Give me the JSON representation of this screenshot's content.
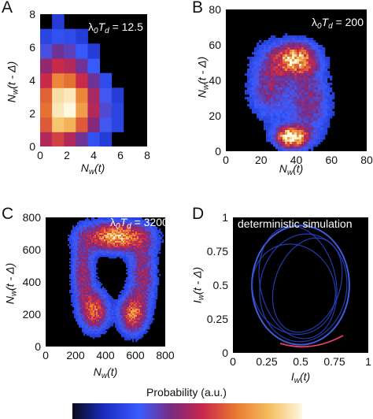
{
  "colormap": [
    "#0a0a1a",
    "#1a2cc0",
    "#3a5cff",
    "#7a2a80",
    "#c8284a",
    "#e87830",
    "#f5c060",
    "#fff8e0"
  ],
  "panels": {
    "A": {
      "letter": "A",
      "annotation": {
        "pre": "λ",
        "sub0": "0",
        "T": "T",
        "subd": "d",
        "post": " = 12.5"
      },
      "xticks": [
        "0",
        "2",
        "4",
        "6",
        "8"
      ],
      "yticks": [
        "0",
        "2",
        "4",
        "6",
        "8"
      ],
      "xlabel": {
        "main": "N",
        "sub": "w",
        "tail": "(t)"
      },
      "ylabel": {
        "main": "N",
        "sub": "w",
        "tail": "(t - Δ)"
      }
    },
    "B": {
      "letter": "B",
      "annotation": {
        "pre": "λ",
        "sub0": "0",
        "T": "T",
        "subd": "d",
        "post": " = 200"
      },
      "xticks": [
        "0",
        "20",
        "40",
        "60",
        "80"
      ],
      "yticks": [
        "0",
        "20",
        "40",
        "60",
        "80"
      ],
      "xlabel": {
        "main": "N",
        "sub": "w",
        "tail": "(t)"
      },
      "ylabel": {
        "main": "N",
        "sub": "w",
        "tail": "(t - Δ)"
      }
    },
    "C": {
      "letter": "C",
      "annotation": {
        "pre": "λ",
        "sub0": "0",
        "T": "T",
        "subd": "d",
        "post": " = 3200"
      },
      "xticks": [
        "0",
        "200",
        "400",
        "600",
        "800"
      ],
      "yticks": [
        "0",
        "200",
        "400",
        "600",
        "800"
      ],
      "xlabel": {
        "main": "N",
        "sub": "w",
        "tail": "(t)"
      },
      "ylabel": {
        "main": "N",
        "sub": "w",
        "tail": "(t - Δ)"
      }
    },
    "D": {
      "letter": "D",
      "annotation_text": "deterministic simulation",
      "xticks": [
        "0",
        "0.25",
        "0.5",
        "0.75",
        "1"
      ],
      "yticks": [
        "0",
        "0.25",
        "0.5",
        "0.75",
        "1"
      ],
      "xlabel": {
        "main": "I",
        "sub": "w",
        "tail": "(t)"
      },
      "ylabel": {
        "main": "I",
        "sub": "w",
        "tail": "(t - Δ)"
      }
    }
  },
  "colorbar_label": "Probability (a.u.)",
  "chart_data": [
    {
      "type": "heatmap",
      "panel": "A",
      "x_range": [
        0,
        8
      ],
      "y_range": [
        0,
        8
      ],
      "bins": 9,
      "values": [
        [
          0.45,
          0.55,
          0.45,
          0.3,
          0.12,
          0.05,
          0.0,
          0.0,
          0.0
        ],
        [
          0.6,
          0.85,
          0.8,
          0.6,
          0.35,
          0.18,
          0.08,
          0.0,
          0.0
        ],
        [
          0.65,
          0.95,
          1.0,
          0.75,
          0.45,
          0.22,
          0.08,
          0.0,
          0.0
        ],
        [
          0.62,
          0.92,
          0.95,
          0.7,
          0.42,
          0.18,
          0.05,
          0.0,
          0.0
        ],
        [
          0.5,
          0.7,
          0.65,
          0.5,
          0.3,
          0.1,
          0.0,
          0.0,
          0.0
        ],
        [
          0.38,
          0.5,
          0.45,
          0.3,
          0.15,
          0.0,
          0.0,
          0.0,
          0.0
        ],
        [
          0.2,
          0.3,
          0.25,
          0.15,
          0.05,
          0.0,
          0.0,
          0.0,
          0.0
        ],
        [
          0.08,
          0.12,
          0.1,
          0.05,
          0.0,
          0.0,
          0.0,
          0.0,
          0.0
        ],
        [
          0.0,
          0.05,
          0.0,
          0.0,
          0.0,
          0.0,
          0.0,
          0.0,
          0.0
        ]
      ]
    },
    {
      "type": "heatmap",
      "panel": "B",
      "x_range": [
        0,
        80
      ],
      "y_range": [
        0,
        80
      ],
      "blobs": [
        {
          "x": 38,
          "y": 8,
          "sx": 6,
          "sy": 4,
          "w": 1.0
        },
        {
          "x": 40,
          "y": 52,
          "sx": 8,
          "sy": 6,
          "w": 0.8
        },
        {
          "x": 25,
          "y": 38,
          "sx": 8,
          "sy": 14,
          "w": 0.35
        },
        {
          "x": 48,
          "y": 28,
          "sx": 8,
          "sy": 14,
          "w": 0.35
        }
      ]
    },
    {
      "type": "heatmap",
      "panel": "C",
      "x_range": [
        0,
        800
      ],
      "y_range": [
        0,
        800
      ],
      "blobs": [
        {
          "x": 470,
          "y": 680,
          "sx": 140,
          "sy": 60,
          "w": 0.8
        },
        {
          "x": 330,
          "y": 220,
          "sx": 60,
          "sy": 80,
          "w": 0.6
        },
        {
          "x": 580,
          "y": 200,
          "sx": 60,
          "sy": 80,
          "w": 0.6
        },
        {
          "x": 250,
          "y": 450,
          "sx": 50,
          "sy": 150,
          "w": 0.4
        },
        {
          "x": 650,
          "y": 450,
          "sx": 60,
          "sy": 150,
          "w": 0.4
        }
      ]
    },
    {
      "type": "line",
      "panel": "D",
      "x_range": [
        0,
        1
      ],
      "y_range": [
        0,
        1
      ],
      "curves": [
        {
          "cx": 0.5,
          "cy": 0.5,
          "rx": 0.36,
          "ry": 0.44,
          "rot": 0
        },
        {
          "cx": 0.52,
          "cy": 0.48,
          "rx": 0.32,
          "ry": 0.4,
          "rot": 10
        },
        {
          "cx": 0.48,
          "cy": 0.52,
          "rx": 0.28,
          "ry": 0.42,
          "rot": -12
        },
        {
          "cx": 0.55,
          "cy": 0.5,
          "rx": 0.24,
          "ry": 0.36,
          "rot": 20
        },
        {
          "cx": 0.45,
          "cy": 0.47,
          "rx": 0.3,
          "ry": 0.34,
          "rot": -25
        }
      ]
    }
  ]
}
